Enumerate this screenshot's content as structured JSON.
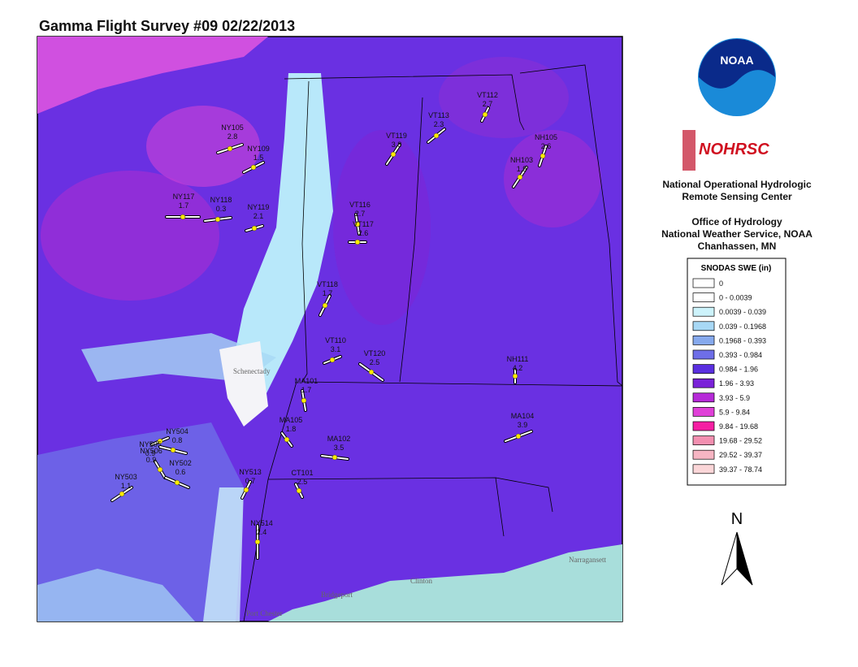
{
  "header": {
    "title": "Gamma Flight Survey #09 02/22/2013"
  },
  "logos": {
    "noaa": "NOAA",
    "nohrsc": "NOHRSC"
  },
  "agency": {
    "lines": [
      "National Operational Hydrologic",
      "Remote Sensing Center",
      "Office of Hydrology",
      "National Weather Service, NOAA",
      "Chanhassen, MN"
    ]
  },
  "legend": {
    "title": "SNODAS SWE (in)",
    "items": [
      {
        "label": "0",
        "color": "#ffffff"
      },
      {
        "label": "0 - 0.0039",
        "color": "#ffffff"
      },
      {
        "label": "0.0039 - 0.039",
        "color": "#cdf3fb"
      },
      {
        "label": "0.039 - 0.1968",
        "color": "#a8d8f5"
      },
      {
        "label": "0.1968 - 0.393",
        "color": "#86a9ed"
      },
      {
        "label": "0.393 - 0.984",
        "color": "#6e6ee8"
      },
      {
        "label": "0.984 - 1.96",
        "color": "#5a2fe0"
      },
      {
        "label": "1.96 - 3.93",
        "color": "#7a22d8"
      },
      {
        "label": "3.93 - 5.9",
        "color": "#b62ad8"
      },
      {
        "label": "5.9 - 9.84",
        "color": "#e040d8"
      },
      {
        "label": "9.84 - 19.68",
        "color": "#f51fa3"
      },
      {
        "label": "19.68 - 29.52",
        "color": "#f28fb0"
      },
      {
        "label": "29.52 - 39.37",
        "color": "#f6b5c3"
      },
      {
        "label": "39.37 - 78.74",
        "color": "#fbd6d8"
      }
    ]
  },
  "north": "N",
  "places": [
    "Schenectady",
    "Clinton",
    "Bridgeport",
    "Port Chester",
    "Narragansett"
  ],
  "flights": [
    {
      "name": "NY105",
      "swe": "2.8"
    },
    {
      "name": "NY109",
      "swe": "1.5"
    },
    {
      "name": "NY117",
      "swe": "1.7"
    },
    {
      "name": "NY118",
      "swe": "0.3"
    },
    {
      "name": "NY119",
      "swe": "2.1"
    },
    {
      "name": "VT119",
      "swe": "3.8"
    },
    {
      "name": "VT113",
      "swe": "2.3"
    },
    {
      "name": "VT112",
      "swe": "2.7"
    },
    {
      "name": "NH105",
      "swe": "2.6"
    },
    {
      "name": "NH103",
      "swe": "1.9"
    },
    {
      "name": "VT116",
      "swe": "2.7"
    },
    {
      "name": "VT117",
      "swe": "2.6"
    },
    {
      "name": "VT118",
      "swe": "1.7"
    },
    {
      "name": "VT110",
      "swe": "3.1"
    },
    {
      "name": "VT120",
      "swe": "2.5"
    },
    {
      "name": "NH111",
      "swe": "4.2"
    },
    {
      "name": "MA101",
      "swe": "1.7"
    },
    {
      "name": "MA105",
      "swe": "1.8"
    },
    {
      "name": "MA102",
      "swe": "3.5"
    },
    {
      "name": "MA104",
      "swe": "3.9"
    },
    {
      "name": "NY505",
      "swe": "0.9"
    },
    {
      "name": "NY504",
      "swe": "0.8"
    },
    {
      "name": "NY506",
      "swe": "0.9"
    },
    {
      "name": "NY502",
      "swe": "0.6"
    },
    {
      "name": "NY503",
      "swe": "1.1"
    },
    {
      "name": "NY513",
      "swe": "0.7"
    },
    {
      "name": "CT101",
      "swe": "2.5"
    },
    {
      "name": "NY514",
      "swe": "2.4"
    }
  ]
}
